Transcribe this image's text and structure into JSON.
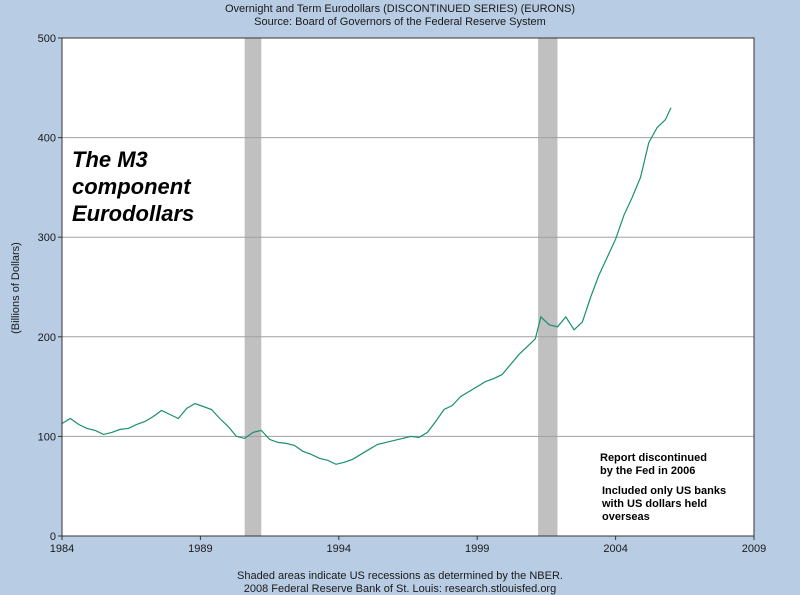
{
  "header": {
    "title": "Overnight and Term Eurodollars (DISCONTINUED SERIES) (EURONS)",
    "source": "Source: Board of Governors of the Federal Reserve System"
  },
  "footer": {
    "line1": "Shaded areas indicate US recessions as determined by the NBER.",
    "line2": "2008 Federal Reserve Bank of St. Louis: research.stlouisfed.org"
  },
  "annotations": {
    "big_label_lines": [
      "The M3",
      "component",
      "Eurodollars"
    ],
    "note_discontinued_lines": [
      "Report discontinued",
      "by the Fed in 2006"
    ],
    "note_banks_lines": [
      "Included only US banks",
      "with US dollars held",
      "overseas"
    ]
  },
  "colors": {
    "line": "#1a8f6f",
    "recession": "#c0c0c0",
    "grid": "#a0a0a0",
    "plot_bg": "#ffffff",
    "page_bg": "#b8cce4"
  },
  "chart_data": {
    "type": "line",
    "title": "Overnight and Term Eurodollars (DISCONTINUED SERIES) (EURONS)",
    "ylabel": "(Billions of Dollars)",
    "xlabel": "",
    "xlim": [
      1984,
      2009
    ],
    "ylim": [
      0,
      500
    ],
    "x_ticks": [
      1984,
      1989,
      1994,
      1999,
      2004,
      2009
    ],
    "y_ticks": [
      0,
      100,
      200,
      300,
      400,
      500
    ],
    "grid": "horizontal",
    "recessions": [
      [
        1990.6,
        1991.2
      ],
      [
        2001.2,
        2001.9
      ]
    ],
    "series": [
      {
        "x": [
          1984.0,
          1984.3,
          1984.6,
          1984.9,
          1985.2,
          1985.5,
          1985.8,
          1986.1,
          1986.4,
          1986.7,
          1987.0,
          1987.3,
          1987.6,
          1987.9,
          1988.2,
          1988.5,
          1988.8,
          1989.1,
          1989.4,
          1989.7,
          1990.0,
          1990.3,
          1990.6,
          1990.9,
          1991.2,
          1991.5,
          1991.8,
          1992.1,
          1992.4,
          1992.7,
          1993.0,
          1993.3,
          1993.6,
          1993.9,
          1994.2,
          1994.5,
          1994.8,
          1995.1,
          1995.4,
          1995.7,
          1996.0,
          1996.3,
          1996.6,
          1996.9,
          1997.2,
          1997.5,
          1997.8,
          1998.1,
          1998.4,
          1998.7,
          1999.0,
          1999.3,
          1999.6,
          1999.9,
          2000.2,
          2000.5,
          2000.8,
          2001.1,
          2001.3,
          2001.6,
          2001.9,
          2002.2,
          2002.5,
          2002.8,
          2003.1,
          2003.4,
          2003.7,
          2004.0,
          2004.3,
          2004.6,
          2004.9,
          2005.2,
          2005.5,
          2005.8,
          2006.0
        ],
        "values": [
          113,
          118,
          112,
          108,
          106,
          102,
          104,
          107,
          108,
          112,
          115,
          120,
          126,
          122,
          118,
          128,
          133,
          130,
          127,
          118,
          110,
          100,
          98,
          104,
          106,
          97,
          94,
          93,
          91,
          85,
          82,
          78,
          76,
          72,
          74,
          77,
          82,
          87,
          92,
          94,
          96,
          98,
          100,
          99,
          104,
          115,
          127,
          131,
          140,
          145,
          150,
          155,
          158,
          162,
          172,
          182,
          190,
          198,
          220,
          212,
          210,
          220,
          207,
          215,
          240,
          262,
          280,
          298,
          322,
          340,
          360,
          395,
          410,
          418,
          430
        ]
      }
    ]
  }
}
